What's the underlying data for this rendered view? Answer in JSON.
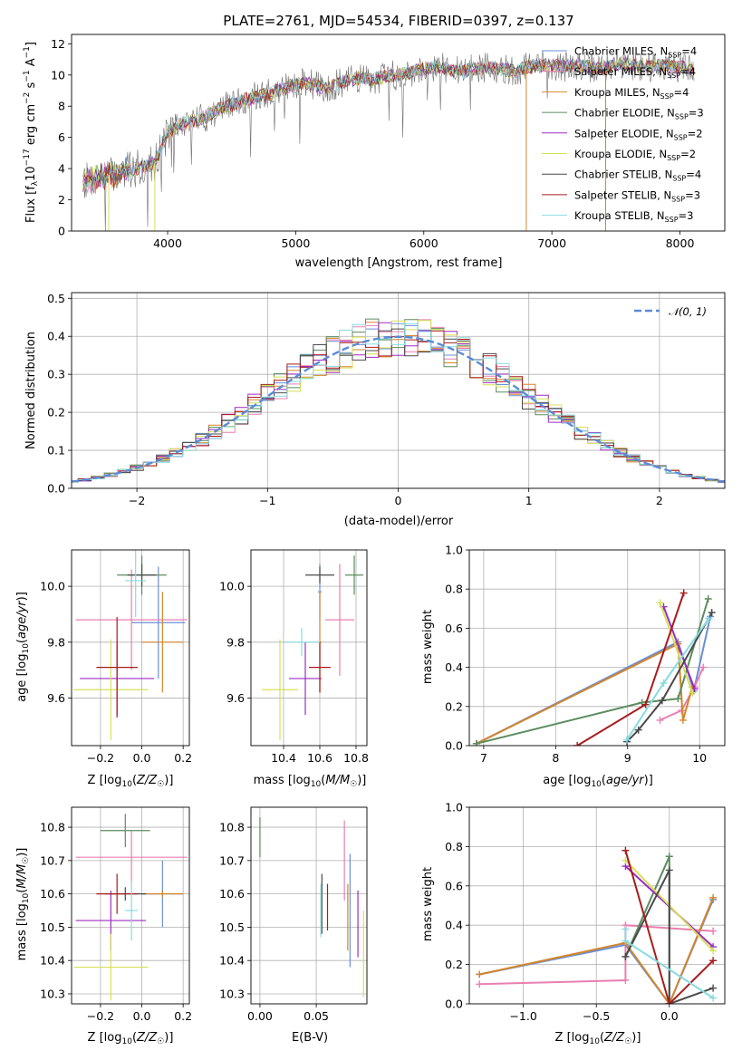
{
  "figure_title": "PLATE=2761, MJD=54534, FIBERID=0397, z=0.137",
  "colors": {
    "Chabrier MILES": "#6a8fd8",
    "Salpeter MILES": "#e87fb0",
    "Kroupa MILES": "#d2862c",
    "Chabrier ELODIE": "#5b8c5f",
    "Salpeter ELODIE": "#9d2cc2",
    "Kroupa ELODIE": "#d4e157",
    "Chabrier STELIB": "#4a4a4a",
    "Salpeter STELIB": "#a81c1c",
    "Kroupa STELIB": "#86dbe0",
    "normal": "#5b8bd8",
    "grid": "#b0b0b0",
    "observed": "#707070"
  },
  "chart_data": [
    {
      "id": "spectrum",
      "type": "line",
      "title": "PLATE=2761, MJD=54534, FIBERID=0397, z=0.137",
      "xlabel": "wavelength [Angstrom, rest frame]",
      "ylabel": "Flux [fλ10⁻¹⁷ erg cm⁻² s⁻¹ A⁻¹]",
      "xlim": [
        3250,
        8350
      ],
      "ylim": [
        0,
        12.6
      ],
      "xticks": [
        "4000",
        "5000",
        "6000",
        "7000",
        "8000"
      ],
      "yticks": [
        "0",
        "2",
        "4",
        "6",
        "8",
        "10",
        "12"
      ],
      "grid": false,
      "legend_position": "top-right",
      "continuum": {
        "x": [
          3350,
          3450,
          3550,
          3650,
          3700,
          3800,
          3900,
          4000,
          4100,
          4200,
          4300,
          4400,
          4500,
          4600,
          4700,
          4800,
          4900,
          5000,
          5100,
          5200,
          5300,
          5400,
          5500,
          5600,
          5700,
          5800,
          5900,
          6000,
          6100,
          6200,
          6300,
          6400,
          6500,
          6600,
          6700,
          6800,
          6900,
          7000,
          7100,
          7200,
          7300,
          7400,
          7500,
          7600,
          7700,
          7800,
          7900,
          8000,
          8100
        ],
        "y": [
          3.2,
          3.4,
          3.6,
          3.8,
          3.9,
          4.1,
          4.4,
          6.3,
          6.8,
          7.1,
          7.3,
          7.8,
          8.1,
          8.4,
          8.6,
          8.8,
          9.1,
          9.4,
          9.5,
          9.2,
          9.3,
          9.6,
          9.8,
          9.7,
          9.9,
          10.0,
          10.2,
          10.4,
          10.6,
          10.3,
          10.2,
          10.4,
          10.5,
          10.4,
          10.2,
          10.5,
          10.6,
          10.6,
          10.5,
          10.6,
          10.5,
          10.4,
          10.7,
          10.7,
          10.5,
          10.6,
          10.6,
          10.5,
          10.4
        ]
      },
      "series": [
        {
          "name": "Chabrier MILES, N_SSP=4",
          "nssp": "4"
        },
        {
          "name": "Salpeter MILES, N_SSP=4",
          "nssp": "4"
        },
        {
          "name": "Kroupa MILES, N_SSP=4",
          "nssp": "4"
        },
        {
          "name": "Chabrier ELODIE, N_SSP=3",
          "nssp": "3"
        },
        {
          "name": "Salpeter ELODIE, N_SSP=2",
          "nssp": "2"
        },
        {
          "name": "Kroupa ELODIE, N_SSP=2",
          "nssp": "2"
        },
        {
          "name": "Chabrier STELIB, N_SSP=4",
          "nssp": "4"
        },
        {
          "name": "Salpeter STELIB, N_SSP=3",
          "nssp": "3"
        },
        {
          "name": "Kroupa STELIB, N_SSP=3",
          "nssp": "3"
        }
      ],
      "legend_labels": [
        {
          "base": "Chabrier MILES, N",
          "sub": "SSP",
          "tail": "=4"
        },
        {
          "base": "Salpeter MILES, N",
          "sub": "SSP",
          "tail": "=4"
        },
        {
          "base": "Kroupa MILES, N",
          "sub": "SSP",
          "tail": "=4"
        },
        {
          "base": "Chabrier ELODIE, N",
          "sub": "SSP",
          "tail": "=3"
        },
        {
          "base": "Salpeter ELODIE, N",
          "sub": "SSP",
          "tail": "=2"
        },
        {
          "base": "Kroupa ELODIE, N",
          "sub": "SSP",
          "tail": "=2"
        },
        {
          "base": "Chabrier STELIB, N",
          "sub": "SSP",
          "tail": "=4"
        },
        {
          "base": "Salpeter STELIB, N",
          "sub": "SSP",
          "tail": "=3"
        },
        {
          "base": "Kroupa STELIB, N",
          "sub": "SSP",
          "tail": "=3"
        }
      ],
      "drops_to_zero_x": [
        3540,
        3900,
        6800,
        7420
      ]
    },
    {
      "id": "residual_hist",
      "type": "bar",
      "xlabel": "(data-model)/error",
      "ylabel": "Normed distribution",
      "xlim": [
        -2.5,
        2.5
      ],
      "ylim": [
        0,
        0.515
      ],
      "xticks": [
        "−2",
        "−1",
        "0",
        "1",
        "2"
      ],
      "yticks": [
        "0.0",
        "0.1",
        "0.2",
        "0.3",
        "0.4",
        "0.5"
      ],
      "grid": true,
      "legend_position": "top-right",
      "legend": "𝒩(0, 1)",
      "bin_width": 0.1,
      "note_series_are_model_histograms": true
    },
    {
      "id": "age_vs_Z",
      "type": "scatter",
      "xlabel": "Z [log10(Z/Z☉)]",
      "ylabel": "age  [log10(age/yr)]",
      "xlim": [
        -0.34,
        0.23
      ],
      "ylim": [
        9.43,
        10.13
      ],
      "xticks": [
        "−0.2",
        "0.0",
        "0.2"
      ],
      "yticks": [
        "9.6",
        "9.8",
        "10.0"
      ],
      "grid": true,
      "points": [
        {
          "series": "Chabrier MILES",
          "x": 0.08,
          "y": 9.87,
          "xerr": 0.13,
          "yerr": 0.2
        },
        {
          "series": "Salpeter MILES",
          "x": -0.05,
          "y": 9.88,
          "xerr": 0.27,
          "yerr": 0.18
        },
        {
          "series": "Kroupa MILES",
          "x": 0.1,
          "y": 9.8,
          "xerr": 0.1,
          "yerr": 0.18
        },
        {
          "series": "Chabrier ELODIE",
          "x": 0.0,
          "y": 10.04,
          "xerr": 0.12,
          "yerr": 0.07
        },
        {
          "series": "Salpeter ELODIE",
          "x": -0.12,
          "y": 9.67,
          "xerr": 0.18,
          "yerr": 0.13
        },
        {
          "series": "Kroupa ELODIE",
          "x": -0.15,
          "y": 9.63,
          "xerr": 0.18,
          "yerr": 0.18
        },
        {
          "series": "Chabrier STELIB",
          "x": 0.0,
          "y": 10.04,
          "xerr": 0.07,
          "yerr": 0.04
        },
        {
          "series": "Salpeter STELIB",
          "x": -0.12,
          "y": 9.71,
          "xerr": 0.1,
          "yerr": 0.18
        },
        {
          "series": "Kroupa STELIB",
          "x": -0.03,
          "y": 10.02,
          "xerr": 0.05,
          "yerr": 0.13
        }
      ]
    },
    {
      "id": "age_vs_mass",
      "type": "scatter",
      "xlabel": "mass [log10(M/M☉)]",
      "ylabel": "",
      "xlim": [
        10.22,
        10.86
      ],
      "ylim": [
        9.43,
        10.13
      ],
      "xticks": [
        "10.4",
        "10.6",
        "10.8"
      ],
      "yticks": [
        "9.6",
        "9.8",
        "10.0"
      ],
      "grid": true,
      "points": [
        {
          "series": "Chabrier MILES",
          "x": 10.6,
          "y": 9.98,
          "xerr": 0.01,
          "yerr": 0.1
        },
        {
          "series": "Salpeter MILES",
          "x": 10.71,
          "y": 9.88,
          "xerr": 0.08,
          "yerr": 0.2
        },
        {
          "series": "Kroupa MILES",
          "x": 10.6,
          "y": 9.8,
          "xerr": 0.01,
          "yerr": 0.18
        },
        {
          "series": "Chabrier ELODIE",
          "x": 10.79,
          "y": 10.04,
          "xerr": 0.05,
          "yerr": 0.07
        },
        {
          "series": "Salpeter ELODIE",
          "x": 10.52,
          "y": 9.67,
          "xerr": 0.09,
          "yerr": 0.13
        },
        {
          "series": "Kroupa ELODIE",
          "x": 10.38,
          "y": 9.63,
          "xerr": 0.1,
          "yerr": 0.18
        },
        {
          "series": "Chabrier STELIB",
          "x": 10.6,
          "y": 10.04,
          "xerr": 0.08,
          "yerr": 0.03
        },
        {
          "series": "Salpeter STELIB",
          "x": 10.6,
          "y": 9.71,
          "xerr": 0.06,
          "yerr": 0.09
        },
        {
          "series": "Kroupa STELIB",
          "x": 10.5,
          "y": 9.8,
          "xerr": 0.1,
          "yerr": 0.05
        }
      ]
    },
    {
      "id": "weight_vs_age",
      "type": "line",
      "xlabel": "age  [log10(age/yr)]",
      "ylabel": "mass weight",
      "xlim": [
        6.8,
        10.35
      ],
      "ylim": [
        0,
        1.0
      ],
      "xticks": [
        "7",
        "8",
        "9",
        "10"
      ],
      "yticks": [
        "0.0",
        "0.2",
        "0.4",
        "0.6",
        "0.8",
        "1.0"
      ],
      "grid": true,
      "series": [
        {
          "name": "Chabrier MILES",
          "x": [
            6.9,
            9.7,
            9.92,
            10.15
          ],
          "y": [
            0.01,
            0.53,
            0.28,
            0.66
          ]
        },
        {
          "name": "Salpeter MILES",
          "x": [
            9.45,
            9.75,
            9.93,
            10.05
          ],
          "y": [
            0.13,
            0.18,
            0.3,
            0.4
          ]
        },
        {
          "name": "Kroupa MILES",
          "x": [
            6.9,
            9.7,
            9.77,
            9.9
          ],
          "y": [
            0.01,
            0.52,
            0.13,
            0.3
          ]
        },
        {
          "name": "Chabrier ELODIE",
          "x": [
            6.9,
            9.2,
            9.7,
            10.12
          ],
          "y": [
            0.01,
            0.22,
            0.24,
            0.75
          ]
        },
        {
          "name": "Salpeter ELODIE",
          "x": [
            9.5,
            9.93
          ],
          "y": [
            0.71,
            0.29
          ]
        },
        {
          "name": "Kroupa ELODIE",
          "x": [
            9.45,
            9.9
          ],
          "y": [
            0.73,
            0.27
          ]
        },
        {
          "name": "Chabrier STELIB",
          "x": [
            8.99,
            9.15,
            9.48,
            10.17
          ],
          "y": [
            0.02,
            0.08,
            0.23,
            0.68
          ]
        },
        {
          "name": "Salpeter STELIB",
          "x": [
            8.3,
            9.25,
            9.78
          ],
          "y": [
            0.0,
            0.21,
            0.78
          ]
        },
        {
          "name": "Kroupa STELIB",
          "x": [
            8.99,
            9.5,
            10.13
          ],
          "y": [
            0.03,
            0.32,
            0.65
          ]
        }
      ]
    },
    {
      "id": "mass_vs_Z",
      "type": "scatter",
      "xlabel": "Z [log10(Z/Z☉)]",
      "ylabel": "mass [log10(M/M☉)]",
      "xlim": [
        -0.34,
        0.23
      ],
      "ylim": [
        10.27,
        10.86
      ],
      "xticks": [
        "−0.2",
        "0.0",
        "0.2"
      ],
      "yticks": [
        "10.3",
        "10.4",
        "10.5",
        "10.6",
        "10.7",
        "10.8"
      ],
      "grid": true,
      "points": [
        {
          "series": "Chabrier MILES",
          "x": 0.1,
          "y": 10.6,
          "xerr": 0.1,
          "yerr": 0.1
        },
        {
          "series": "Salpeter MILES",
          "x": -0.05,
          "y": 10.71,
          "xerr": 0.27,
          "yerr": 0.08
        },
        {
          "series": "Kroupa MILES",
          "x": 0.1,
          "y": 10.6,
          "xerr": 0.1,
          "yerr": 0.01
        },
        {
          "series": "Chabrier ELODIE",
          "x": -0.08,
          "y": 10.79,
          "xerr": 0.12,
          "yerr": 0.05
        },
        {
          "series": "Salpeter ELODIE",
          "x": -0.15,
          "y": 10.52,
          "xerr": 0.17,
          "yerr": 0.09
        },
        {
          "series": "Kroupa ELODIE",
          "x": -0.15,
          "y": 10.38,
          "xerr": 0.18,
          "yerr": 0.1
        },
        {
          "series": "Chabrier STELIB",
          "x": -0.08,
          "y": 10.6,
          "xerr": 0.1,
          "yerr": 0.02
        },
        {
          "series": "Salpeter STELIB",
          "x": -0.12,
          "y": 10.6,
          "xerr": 0.1,
          "yerr": 0.06
        },
        {
          "series": "Kroupa STELIB",
          "x": -0.05,
          "y": 10.55,
          "xerr": 0.03,
          "yerr": 0.09
        }
      ]
    },
    {
      "id": "mass_vs_ebv",
      "type": "scatter",
      "xlabel": "E(B-V)",
      "ylabel": "",
      "xlim": [
        -0.008,
        0.095
      ],
      "ylim": [
        10.27,
        10.86
      ],
      "xticks": [
        "0.00",
        "0.05"
      ],
      "yticks": [
        "10.3",
        "10.4",
        "10.5",
        "10.6",
        "10.7",
        "10.8"
      ],
      "grid": true,
      "points": [
        {
          "series": "Chabrier MILES",
          "x": 0.08,
          "y": 10.55,
          "yerr": 0.17
        },
        {
          "series": "Salpeter MILES",
          "x": 0.075,
          "y": 10.7,
          "yerr": 0.12
        },
        {
          "series": "Kroupa MILES",
          "x": 0.078,
          "y": 10.53,
          "yerr": 0.1
        },
        {
          "series": "Chabrier ELODIE",
          "x": 0.0,
          "y": 10.77,
          "yerr": 0.06
        },
        {
          "series": "Salpeter ELODIE",
          "x": 0.087,
          "y": 10.51,
          "yerr": 0.1
        },
        {
          "series": "Kroupa ELODIE",
          "x": 0.092,
          "y": 10.42,
          "yerr": 0.13
        },
        {
          "series": "Chabrier STELIB",
          "x": 0.055,
          "y": 10.57,
          "yerr": 0.09
        },
        {
          "series": "Salpeter STELIB",
          "x": 0.06,
          "y": 10.56,
          "yerr": 0.07
        },
        {
          "series": "Kroupa STELIB",
          "x": 0.054,
          "y": 10.55,
          "yerr": 0.08
        }
      ]
    },
    {
      "id": "weight_vs_Z",
      "type": "line",
      "xlabel": "Z [log10(Z/Z☉)]",
      "ylabel": "mass weight",
      "xlim": [
        -1.37,
        0.38
      ],
      "ylim": [
        0,
        1.0
      ],
      "xticks": [
        "−1.0",
        "−0.5",
        "0.0"
      ],
      "yticks": [
        "0.0",
        "0.2",
        "0.4",
        "0.6",
        "0.8",
        "1.0"
      ],
      "grid": true,
      "series": [
        {
          "name": "Chabrier MILES",
          "x": [
            -1.3,
            -0.3,
            0.0,
            0.3
          ],
          "y": [
            0.15,
            0.3,
            0.0,
            0.53
          ]
        },
        {
          "name": "Salpeter MILES",
          "x": [
            -1.3,
            -0.3,
            -0.3,
            0.3
          ],
          "y": [
            0.1,
            0.12,
            0.4,
            0.37
          ]
        },
        {
          "name": "Kroupa MILES",
          "x": [
            -1.3,
            -0.3,
            0.0,
            0.3
          ],
          "y": [
            0.15,
            0.31,
            0.0,
            0.54
          ]
        },
        {
          "name": "Chabrier ELODIE",
          "x": [
            -0.3,
            0.0,
            0.0
          ],
          "y": [
            0.24,
            0.75,
            0.0
          ]
        },
        {
          "name": "Salpeter ELODIE",
          "x": [
            -0.3,
            0.3
          ],
          "y": [
            0.7,
            0.29
          ]
        },
        {
          "name": "Kroupa ELODIE",
          "x": [
            -0.3,
            0.3
          ],
          "y": [
            0.73,
            0.27
          ]
        },
        {
          "name": "Chabrier STELIB",
          "x": [
            -0.3,
            0.0,
            0.0,
            0.3
          ],
          "y": [
            0.24,
            0.68,
            0.0,
            0.08
          ]
        },
        {
          "name": "Salpeter STELIB",
          "x": [
            -0.3,
            0.0,
            0.3
          ],
          "y": [
            0.78,
            0.0,
            0.22
          ]
        },
        {
          "name": "Kroupa STELIB",
          "x": [
            -0.3,
            -0.3,
            0.3
          ],
          "y": [
            0.38,
            0.32,
            0.03
          ]
        }
      ]
    }
  ]
}
